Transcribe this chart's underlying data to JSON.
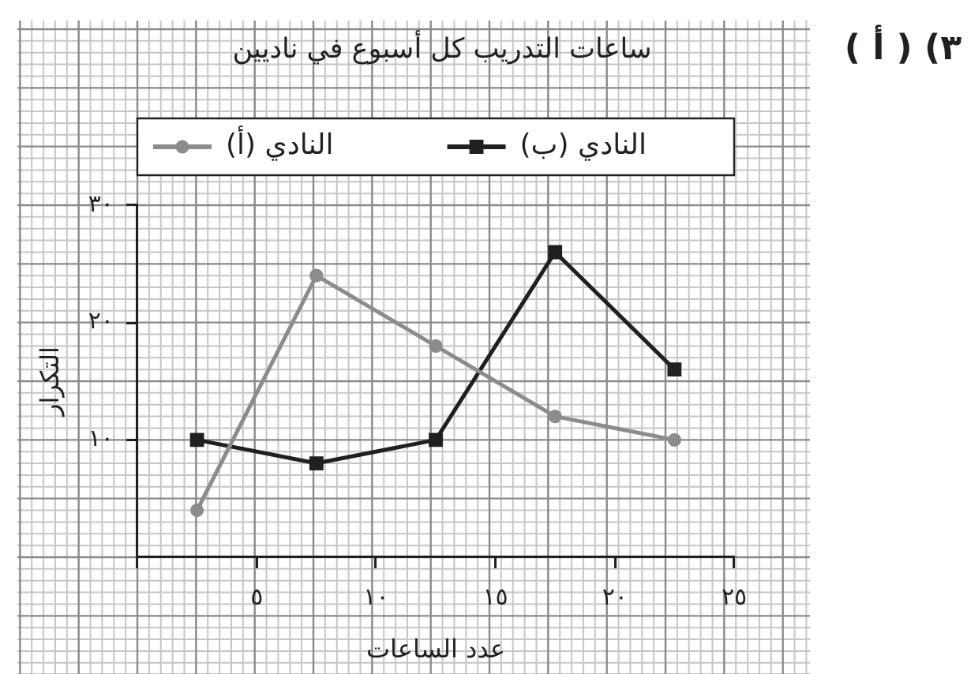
{
  "chart_data": {
    "type": "line",
    "title": "ساعات التدريب كل أسبوع في ناديين",
    "xlabel": "عدد الساعات",
    "ylabel": "التكرار",
    "annotations": [
      "٣) ( أ )"
    ],
    "x": [
      2.5,
      7.5,
      12.5,
      17.5,
      22.5
    ],
    "series": [
      {
        "name": "النادي (أ)",
        "color": "#8c8c8c",
        "marker": "circle",
        "values": [
          4,
          24,
          18,
          12,
          10
        ]
      },
      {
        "name": "النادي (ب)",
        "color": "#231f20",
        "marker": "square",
        "values": [
          10,
          8,
          10,
          26,
          16
        ]
      }
    ],
    "xlim": [
      0,
      25
    ],
    "xticks": [
      {
        "value": 0,
        "label": null
      },
      {
        "value": 5,
        "label": "٥"
      },
      {
        "value": 10,
        "label": "١٠"
      },
      {
        "value": 15,
        "label": "١٥"
      },
      {
        "value": 20,
        "label": "٢٠"
      },
      {
        "value": 25,
        "label": "٢٥"
      }
    ],
    "ylim": [
      0,
      30
    ],
    "yticks": [
      {
        "value": 10,
        "label": "١٠"
      },
      {
        "value": 20,
        "label": "٢٠"
      },
      {
        "value": 30,
        "label": "٣٠"
      }
    ],
    "grid": true,
    "legend": "top"
  }
}
